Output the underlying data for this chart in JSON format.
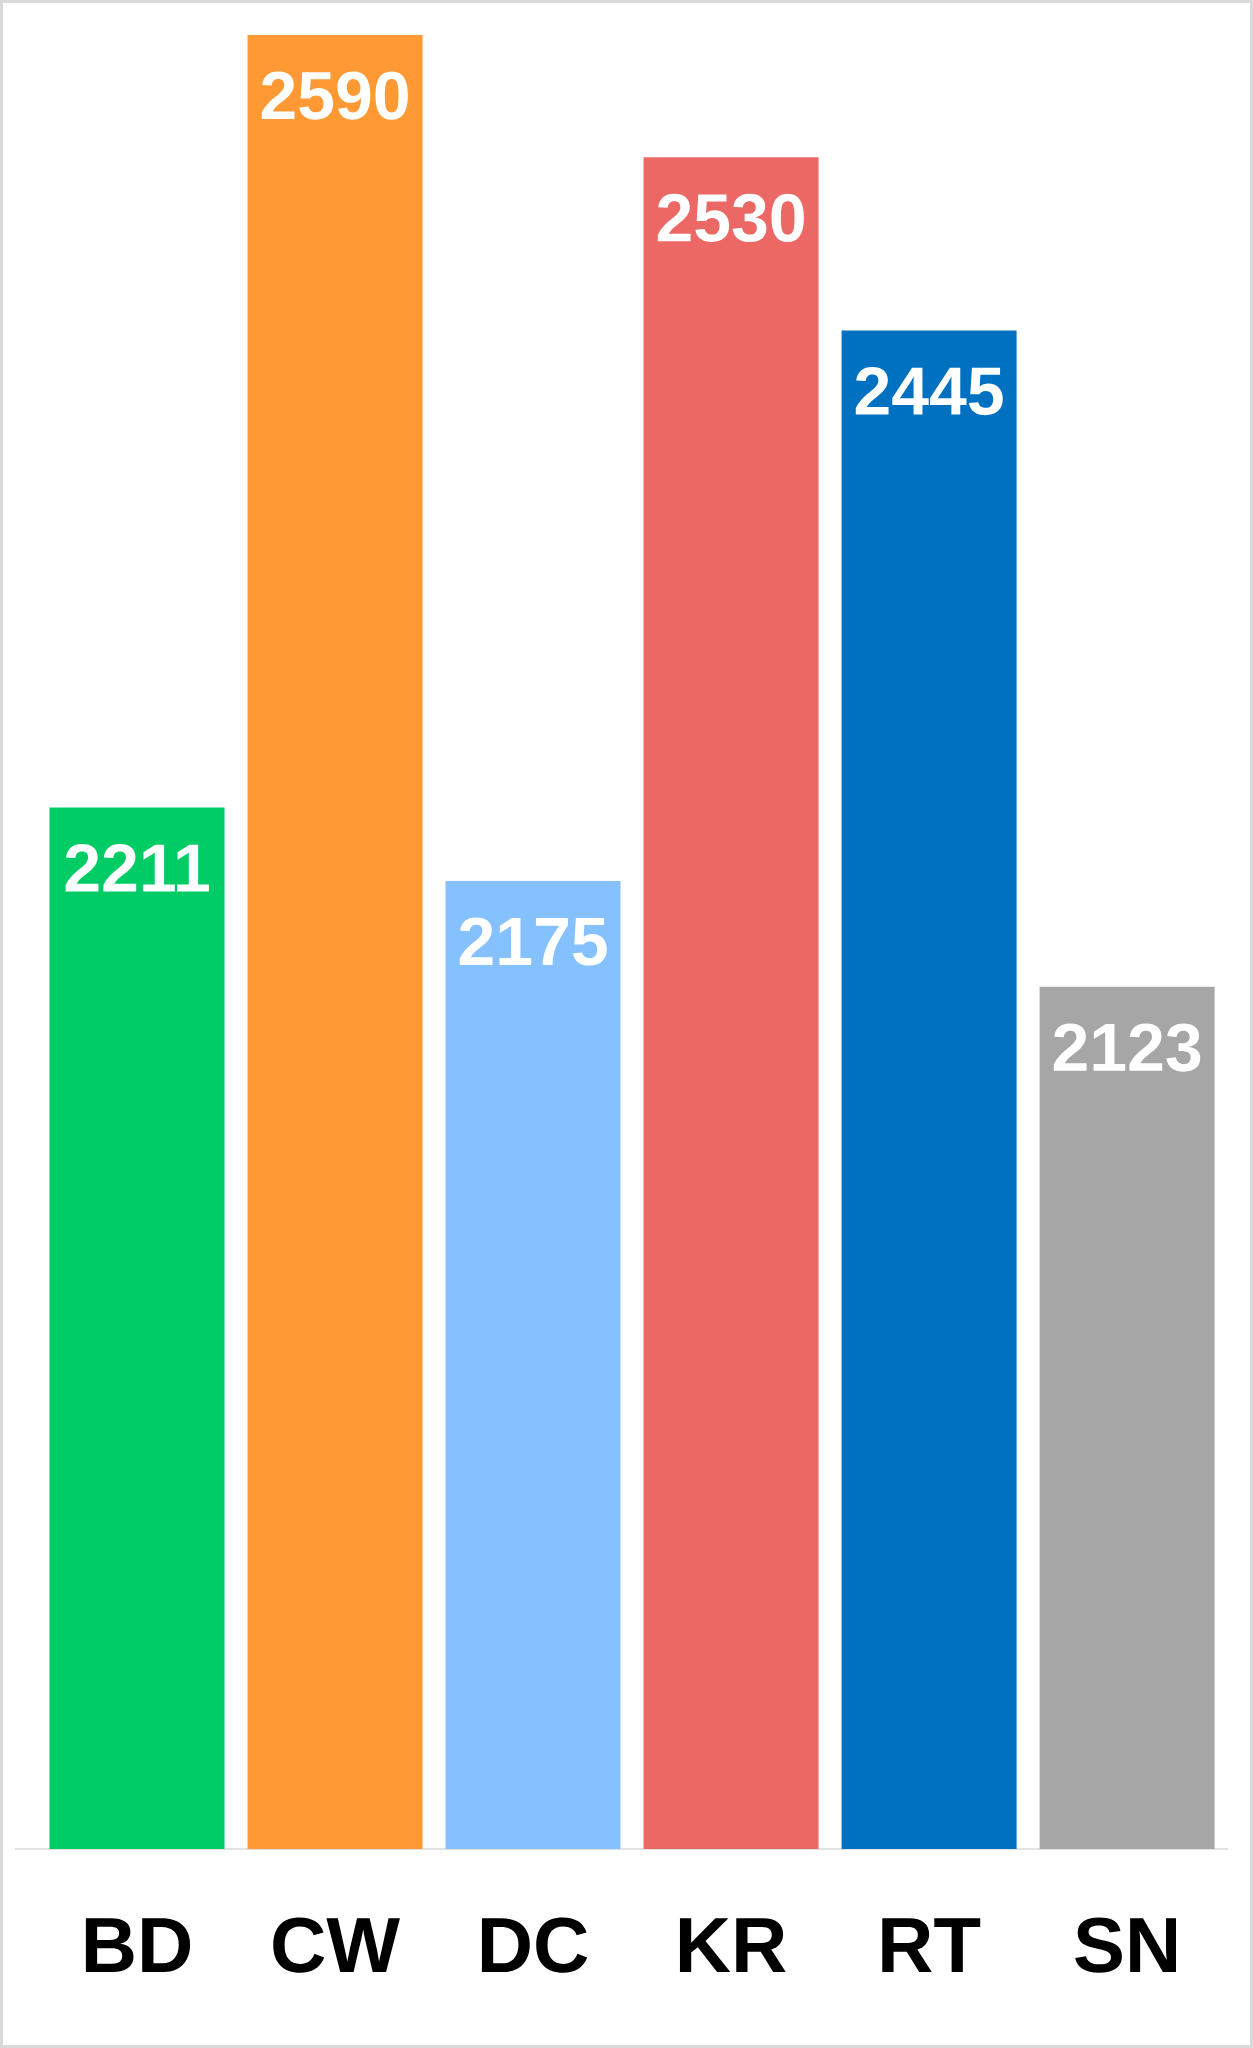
{
  "chart_data": {
    "type": "bar",
    "categories": [
      "BD",
      "CW",
      "DC",
      "KR",
      "RT",
      "SN"
    ],
    "values": [
      2211,
      2590,
      2175,
      2530,
      2445,
      2123
    ],
    "colors": [
      "#00cc66",
      "#ff9933",
      "#85c1ff",
      "#eb6864",
      "#0070c0",
      "#a6a6a6"
    ],
    "ylim": [
      1700,
      2590
    ],
    "data_labels": true,
    "tick_labels": "x"
  }
}
